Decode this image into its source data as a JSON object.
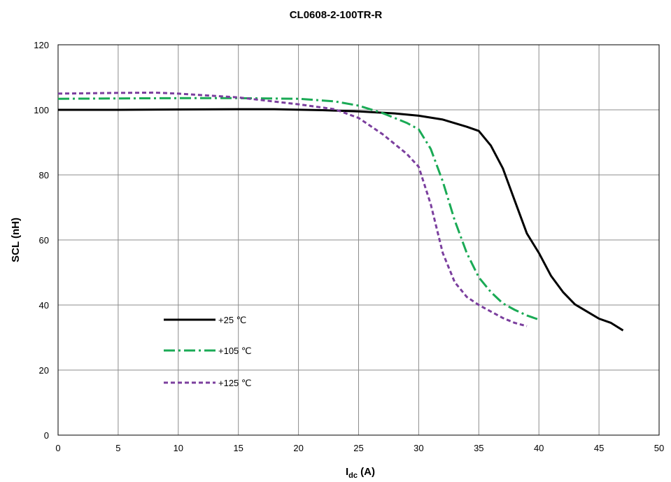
{
  "chart_data": {
    "type": "line",
    "title": "CL0608-2-100TR-R",
    "xlabel": {
      "main": "I",
      "sub": "dc",
      "suffix": " (A)"
    },
    "ylabel": "SCL (nH)",
    "xlim": [
      0,
      50
    ],
    "ylim": [
      0,
      120
    ],
    "x_ticks": [
      0,
      5,
      10,
      15,
      20,
      25,
      30,
      35,
      40,
      45,
      50
    ],
    "y_ticks": [
      0,
      20,
      40,
      60,
      80,
      100,
      120
    ],
    "grid": true,
    "legend_placement": "lower-left",
    "series": [
      {
        "name": "+25 ℃",
        "color": "#000000",
        "dash": "solid",
        "points": [
          [
            0,
            100
          ],
          [
            5,
            100
          ],
          [
            10,
            100.1
          ],
          [
            15,
            100.2
          ],
          [
            18,
            100.2
          ],
          [
            22,
            99.9
          ],
          [
            25,
            99.5
          ],
          [
            28,
            98.9
          ],
          [
            30,
            98.2
          ],
          [
            32,
            97
          ],
          [
            34,
            94.8
          ],
          [
            35,
            93.5
          ],
          [
            36,
            89
          ],
          [
            37,
            82
          ],
          [
            38,
            72
          ],
          [
            39,
            62
          ],
          [
            40,
            56
          ],
          [
            41,
            49
          ],
          [
            42,
            44
          ],
          [
            43,
            40.2
          ],
          [
            44,
            38
          ],
          [
            45,
            35.8
          ],
          [
            46,
            34.5
          ],
          [
            47,
            32.2
          ]
        ]
      },
      {
        "name": "+105 ℃",
        "color": "#1aaa55",
        "dash": "dashdot",
        "points": [
          [
            0,
            103.4
          ],
          [
            5,
            103.5
          ],
          [
            10,
            103.6
          ],
          [
            15,
            103.6
          ],
          [
            20,
            103.4
          ],
          [
            23,
            102.6
          ],
          [
            25,
            101.3
          ],
          [
            27,
            99
          ],
          [
            29,
            96
          ],
          [
            30,
            94
          ],
          [
            31,
            88
          ],
          [
            32,
            78
          ],
          [
            33,
            66
          ],
          [
            34,
            56
          ],
          [
            35,
            48.5
          ],
          [
            36,
            44
          ],
          [
            37,
            40.5
          ],
          [
            38,
            38.5
          ],
          [
            39,
            36.8
          ],
          [
            40,
            35.5
          ]
        ]
      },
      {
        "name": "+125 ℃",
        "color": "#7b3f9e",
        "dash": "dash",
        "points": [
          [
            0,
            105
          ],
          [
            5,
            105.2
          ],
          [
            8,
            105.3
          ],
          [
            10,
            105
          ],
          [
            15,
            103.8
          ],
          [
            20,
            101.7
          ],
          [
            23,
            100.2
          ],
          [
            25,
            97.5
          ],
          [
            27,
            92.5
          ],
          [
            29,
            86.5
          ],
          [
            30,
            82.5
          ],
          [
            31,
            71
          ],
          [
            32,
            56
          ],
          [
            33,
            47
          ],
          [
            34,
            42.5
          ],
          [
            35,
            40
          ],
          [
            36,
            38
          ],
          [
            37,
            36
          ],
          [
            38,
            34.5
          ],
          [
            39,
            33.5
          ]
        ]
      }
    ]
  }
}
